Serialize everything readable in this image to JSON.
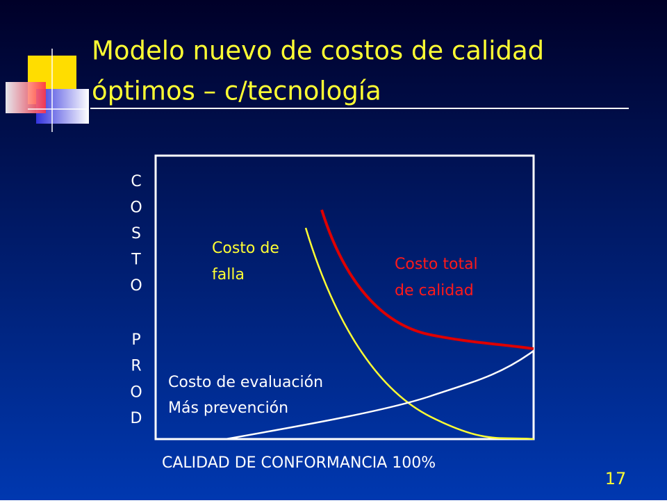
{
  "title": {
    "lines": [
      "Modelo nuevo de costos de calidad",
      "óptimos – c/tecnología"
    ]
  },
  "diagram": {
    "y_axis_label": {
      "word1": [
        "C",
        "O",
        "S",
        "T",
        "O"
      ],
      "word2": [
        "P",
        "R",
        "O",
        "D"
      ]
    },
    "x_axis_label": "CALIDAD DE CONFORMANCIA  100%",
    "curves": [
      {
        "label": [
          "Costo de",
          "falla"
        ]
      },
      {
        "label": [
          "Costo total",
          "de calidad"
        ]
      },
      {
        "label": [
          "Costo de evaluación",
          "Más prevención"
        ]
      }
    ]
  },
  "page_number": "17"
}
